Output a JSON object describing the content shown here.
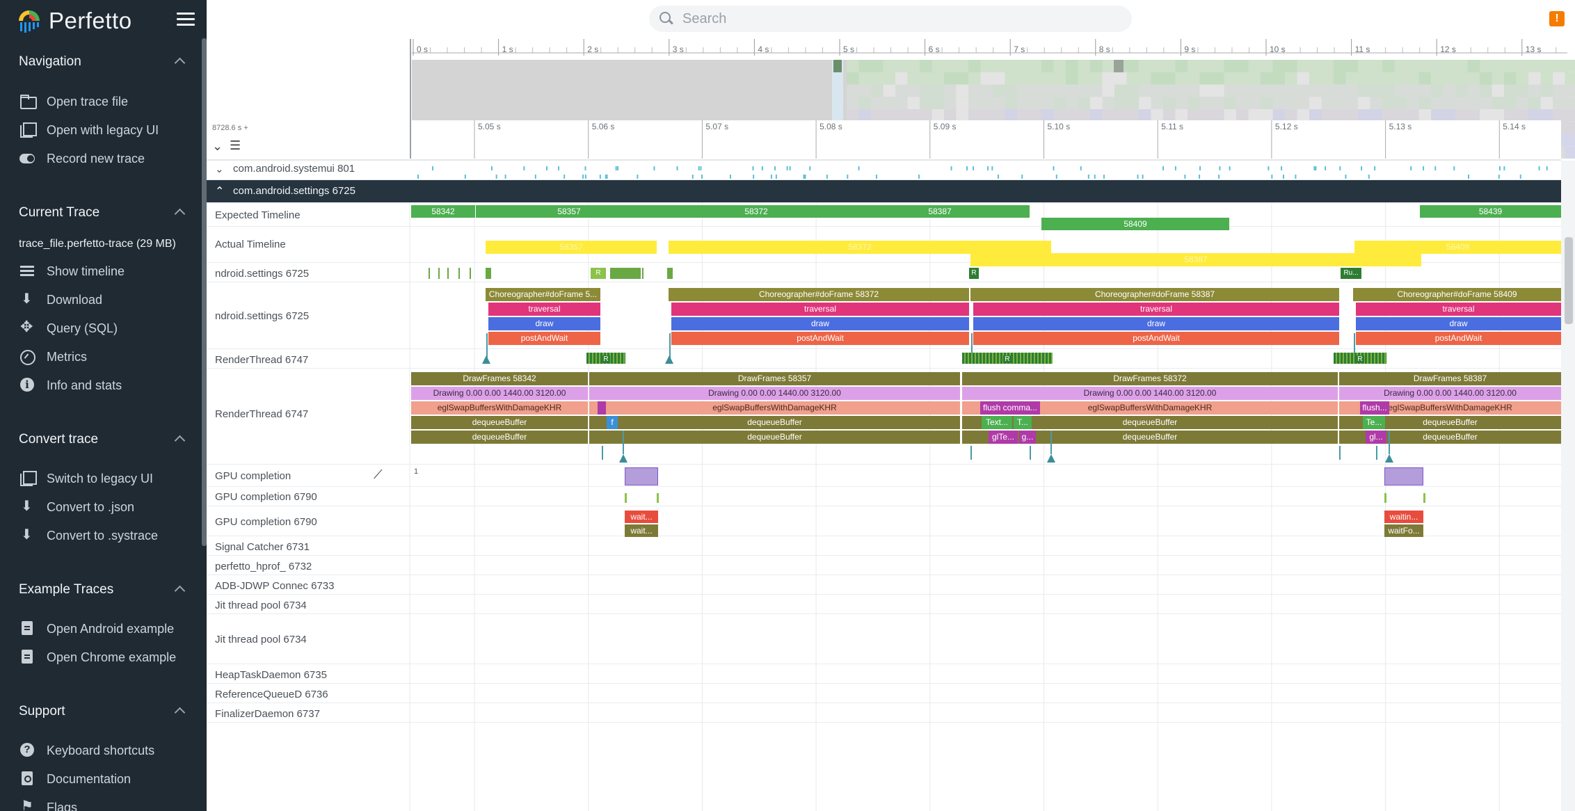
{
  "app": {
    "name": "Perfetto"
  },
  "search": {
    "placeholder": "Search"
  },
  "sidebar": {
    "sections": [
      {
        "title": "Navigation",
        "items": [
          "Open trace file",
          "Open with legacy UI",
          "Record new trace"
        ]
      },
      {
        "title": "Current Trace",
        "file": "trace_file.perfetto-trace (29 MB)",
        "items": [
          "Show timeline",
          "Download",
          "Query (SQL)",
          "Metrics",
          "Info and stats"
        ]
      },
      {
        "title": "Convert trace",
        "items": [
          "Switch to legacy UI",
          "Convert to .json",
          "Convert to .systrace"
        ]
      },
      {
        "title": "Example Traces",
        "items": [
          "Open Android example",
          "Open Chrome example"
        ]
      },
      {
        "title": "Support",
        "items": [
          "Keyboard shortcuts",
          "Documentation",
          "Flags"
        ]
      }
    ]
  },
  "overview": {
    "ticks": [
      "0 s",
      "1 s",
      "2 s",
      "3 s",
      "4 s",
      "5 s",
      "6 s",
      "7 s",
      "8 s",
      "9 s",
      "10 s",
      "11 s",
      "12 s",
      "13 s"
    ]
  },
  "ruler": {
    "offset": "8728.6 s +",
    "ticks": [
      "5.05 s",
      "5.06 s",
      "5.07 s",
      "5.08 s",
      "5.09 s",
      "5.10 s",
      "5.11 s",
      "5.12 s",
      "5.13 s",
      "5.14 s"
    ]
  },
  "tracks": {
    "collapsed_group": "com.android.systemui 801",
    "expanded_group": "com.android.settings 6725",
    "rows": [
      "Expected Timeline",
      "Actual Timeline",
      "ndroid.settings 6725",
      "ndroid.settings 6725",
      "RenderThread 6747",
      "RenderThread 6747",
      "GPU completion",
      "GPU completion 6790",
      "GPU completion 6790",
      "Signal Catcher 6731",
      "perfetto_hprof_ 6732",
      "ADB-JDWP Connec 6733",
      "Jit thread pool 6734",
      "Jit thread pool 6734",
      "HeapTaskDaemon 6735",
      "ReferenceQueueD 6736",
      "FinalizerDaemon 6737"
    ],
    "counter_value": "1"
  },
  "slices": {
    "expected": [
      "58342",
      "58357",
      "58372",
      "58387",
      "58409",
      "58439"
    ],
    "actual": [
      "58357",
      "58372",
      "58387",
      "58409"
    ],
    "main_small": [
      "R",
      "R",
      "Ru..."
    ],
    "choreographer": [
      "Choreographer#doFrame 5...",
      "Choreographer#doFrame 58372",
      "Choreographer#doFrame 58387",
      "Choreographer#doFrame 58409"
    ],
    "traversal": "traversal",
    "draw": "draw",
    "postAndWait": "postAndWait",
    "render_small": [
      "R",
      "R",
      "R"
    ],
    "drawframes": [
      "DrawFrames 58342",
      "DrawFrames 58357",
      "DrawFrames 58372",
      "DrawFrames 58387"
    ],
    "drawing": "Drawing  0.00  0.00 1440.00 3120.00",
    "egl": "eglSwapBuffersWithDamageKHR",
    "dequeue": "dequeueBuffer",
    "flush": [
      "flush comma...",
      "flush..."
    ],
    "text": [
      "Text...",
      "T...",
      "Te..."
    ],
    "gl": [
      "glTe...",
      "g...",
      "gl..."
    ],
    "f": "f",
    "gpu_wait": [
      "wait...",
      "wait...",
      "waitin...",
      "waitFo..."
    ]
  },
  "colors": {
    "sidebar_bg": "#1f2a33",
    "group_header_bg": "#263440",
    "expected": "#4caf50",
    "actual": "#ffeb3b",
    "choreographer": "#8d8a37",
    "traversal": "#e0357a",
    "draw": "#4a6de0",
    "postAndWait": "#ee6446",
    "drawing": "#dca0e8",
    "egl": "#f0a08c",
    "dequeue": "#7d7a37",
    "gpu_wait_red": "#e84c3d",
    "gpu_wait_olive": "#7d7a37",
    "warn": "#f57c00"
  }
}
